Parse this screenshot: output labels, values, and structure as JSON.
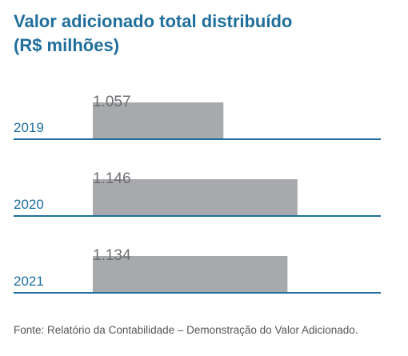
{
  "title": {
    "line1": "Valor adicionado total distribuído",
    "line2": "(R$ milhões)"
  },
  "colors": {
    "title": "#1f6e9c",
    "year_label": "#1f6e9c",
    "axis_line": "#1f6e9c",
    "bar": "#a7a9ac",
    "value_label": "#6d6e71"
  },
  "chart_data": {
    "type": "bar",
    "orientation": "horizontal",
    "categories": [
      "2019",
      "2020",
      "2021"
    ],
    "values": [
      1.057,
      1.146,
      1.134
    ],
    "value_labels": [
      "1.057",
      "1.146",
      "1.134"
    ],
    "title": "Valor adicionado total distribuído (R$ milhões)",
    "xlabel": "",
    "ylabel": "",
    "grid": false,
    "legend": "none"
  },
  "footnote": "Fonte: Relatório da Contabilidade – Demonstração do Valor Adicionado."
}
